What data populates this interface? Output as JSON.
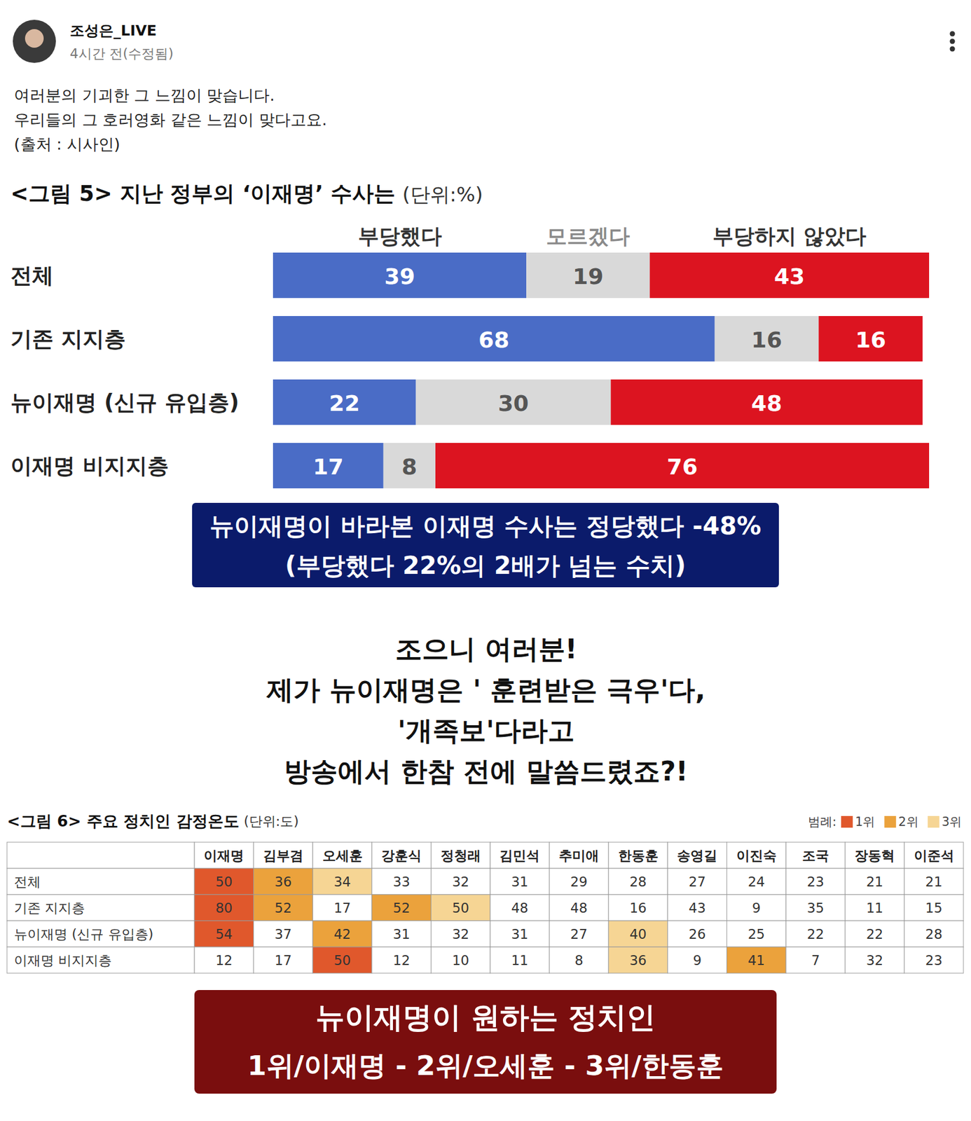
{
  "post": {
    "author": "조성은_LIVE",
    "time": "4시간 전(수정됨)",
    "text": [
      "여러분의 기괴한 그 느낌이 맞습니다.",
      "우리들의 그 호러영화 같은 느낌이 맞다고요.",
      "(출처 : 시사인)"
    ]
  },
  "chart_data": [
    {
      "type": "bar",
      "orientation": "horizontal",
      "stacked": true,
      "data_labels": true,
      "tick_labels": false,
      "title": "<그림 5> 지난 정부의 ‘이재명’ 수사는",
      "subtitle": "(단위:%)",
      "categories": [
        "전체",
        "기존 지지층",
        "뉴이재명 (신규 유입층)",
        "이재명 비지지층"
      ],
      "xlim": [
        0,
        101
      ],
      "series": [
        {
          "name": "부당했다",
          "color": "#4a6cc6",
          "values": [
            39,
            68,
            22,
            17
          ]
        },
        {
          "name": "모르겠다",
          "color": "#d9d9d9",
          "values": [
            19,
            16,
            30,
            8
          ]
        },
        {
          "name": "부당하지 않았다",
          "color": "#dc1420",
          "values": [
            43,
            16,
            48,
            76
          ]
        }
      ]
    },
    {
      "type": "heatmap",
      "data_labels": true,
      "legend": "upper right",
      "title": "<그림 6> 주요 정치인 감정온도",
      "subtitle": "(단위:도)",
      "legend_title": "범례:",
      "legend_labels": [
        "1위",
        "2위",
        "3위"
      ],
      "colors": [
        "#e0582c",
        "#eba23c",
        "#f6d594"
      ],
      "columns": [
        "이재명",
        "김부겸",
        "오세훈",
        "강훈식",
        "정청래",
        "김민석",
        "추미애",
        "한동훈",
        "송영길",
        "이진숙",
        "조국",
        "장동혁",
        "이준석"
      ],
      "categories": [
        "전체",
        "기존 지지층",
        "뉴이재명 (신규 유입층)",
        "이재명 비지지층"
      ],
      "values": [
        [
          50,
          36,
          34,
          33,
          32,
          31,
          29,
          28,
          27,
          24,
          23,
          21,
          21
        ],
        [
          80,
          52,
          17,
          52,
          50,
          48,
          48,
          16,
          43,
          9,
          35,
          11,
          15
        ],
        [
          54,
          37,
          42,
          31,
          32,
          31,
          27,
          40,
          26,
          25,
          22,
          22,
          28
        ],
        [
          12,
          17,
          50,
          12,
          10,
          11,
          8,
          36,
          9,
          41,
          7,
          32,
          23
        ]
      ],
      "ranks": [
        [
          1,
          2,
          3,
          null,
          null,
          null,
          null,
          null,
          null,
          null,
          null,
          null,
          null
        ],
        [
          1,
          2,
          null,
          2,
          3,
          null,
          null,
          null,
          null,
          null,
          null,
          null,
          null
        ],
        [
          1,
          null,
          2,
          null,
          null,
          null,
          null,
          3,
          null,
          null,
          null,
          null,
          null
        ],
        [
          null,
          null,
          1,
          null,
          null,
          null,
          null,
          3,
          null,
          2,
          null,
          null,
          null
        ]
      ]
    }
  ],
  "annotations": {
    "chart5_note": [
      "뉴이재명이 바라본 이재명 수사는 정당했다 -48%",
      "(부당했다 22%의 2배가 넘는 수치)"
    ],
    "middle_text": [
      "조으니 여러분!",
      "제가 뉴이재명은 ' 훈련받은 극우'다,",
      "'개족보'다라고",
      "방송에서 한참 전에 말씀드렸죠?!"
    ],
    "chart6_note": [
      "뉴이재명이 원하는 정치인",
      "1위/이재명 - 2위/오세훈 - 3위/한동훈"
    ]
  }
}
